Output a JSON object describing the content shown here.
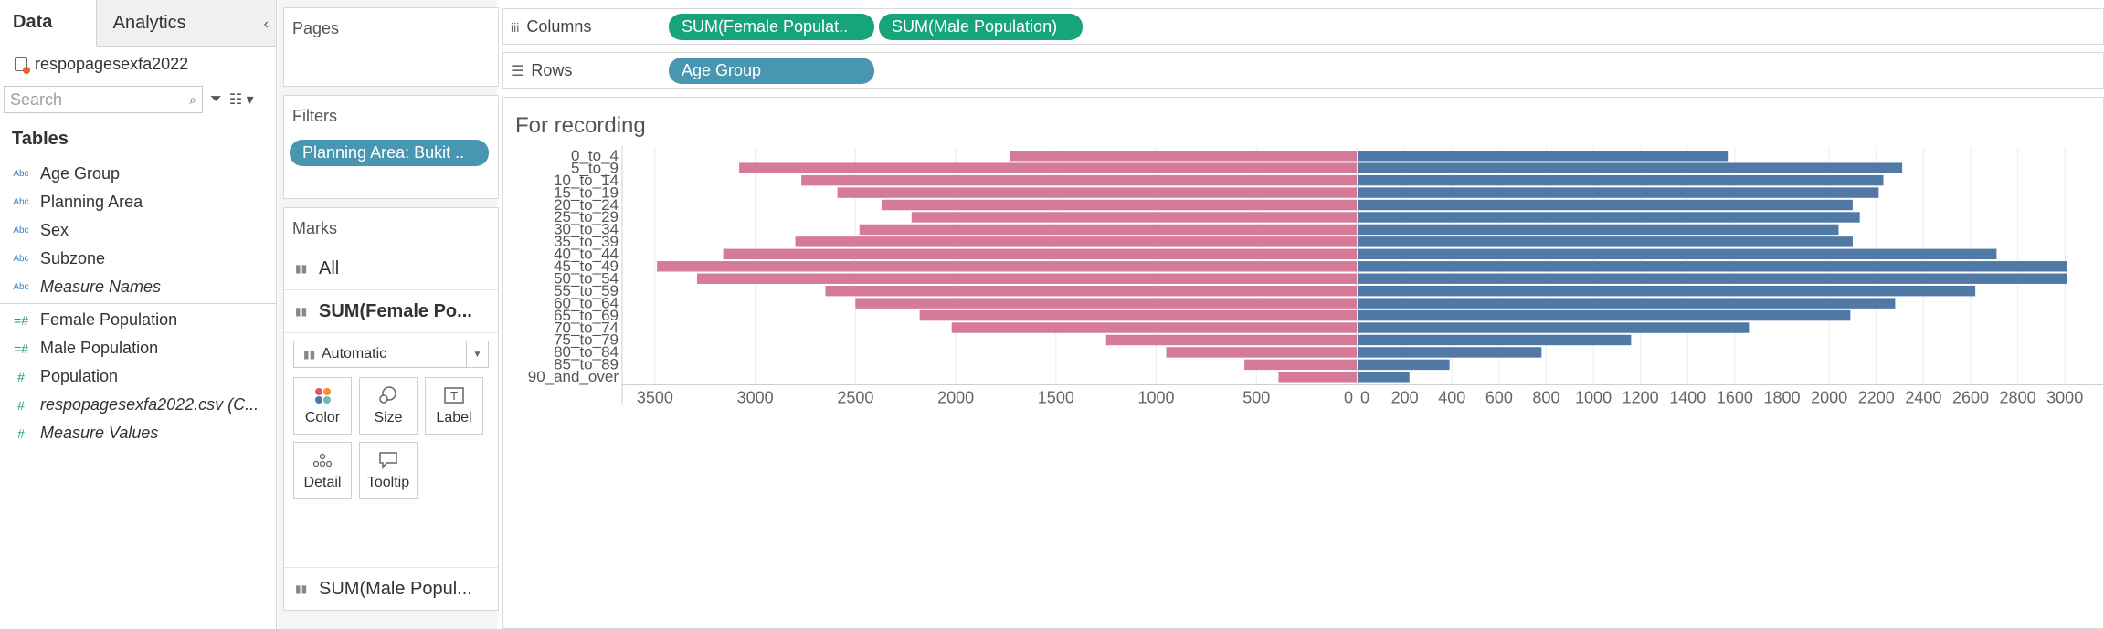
{
  "left_pane": {
    "tabs": {
      "data": "Data",
      "analytics": "Analytics"
    },
    "datasource": "respopagesexfa2022",
    "search_placeholder": "Search",
    "tables_heading": "Tables",
    "dimensions": [
      "Age Group",
      "Planning Area",
      "Sex",
      "Subzone",
      "Measure Names"
    ],
    "dimension_badge": "Abc",
    "measures": [
      "Female Population",
      "Male Population",
      "Population",
      "respopagesexfa2022.csv (C...",
      "Measure Values"
    ]
  },
  "cards": {
    "pages_title": "Pages",
    "filters_title": "Filters",
    "filter_pill": "Planning Area: Bukit ..",
    "marks_title": "Marks",
    "marks_all": "All",
    "marks_female": "SUM(Female Po...",
    "mark_type": "Automatic",
    "buttons": {
      "color": "Color",
      "size": "Size",
      "label": "Label",
      "detail": "Detail",
      "tooltip": "Tooltip"
    },
    "marks_male": "SUM(Male Popul..."
  },
  "shelves": {
    "columns_label": "Columns",
    "columns_pills": [
      "SUM(Female Populat..",
      "SUM(Male Population)"
    ],
    "rows_label": "Rows",
    "rows_pill": "Age Group"
  },
  "colors": {
    "female": "#d67a9a",
    "male": "#5079a6",
    "pill_blue": "#4996b2",
    "pill_green": "#18a47a"
  },
  "chart_data": {
    "type": "bar",
    "title": "For recording",
    "categories": [
      "0_to_4",
      "5_to_9",
      "10_to_14",
      "15_to_19",
      "20_to_24",
      "25_to_29",
      "30_to_34",
      "35_to_39",
      "40_to_44",
      "45_to_49",
      "50_to_54",
      "55_to_59",
      "60_to_64",
      "65_to_69",
      "70_to_74",
      "75_to_79",
      "80_to_84",
      "85_to_89",
      "90_and_over"
    ],
    "series": [
      {
        "values": [
          1730,
          3080,
          2770,
          2590,
          2370,
          2220,
          2480,
          2800,
          3160,
          3490,
          3290,
          2650,
          2500,
          2180,
          2020,
          1250,
          950,
          560,
          390
        ]
      },
      {
        "values": [
          1570,
          2310,
          2230,
          2210,
          2100,
          2130,
          2040,
          2100,
          2710,
          3010,
          3010,
          2620,
          2280,
          2090,
          1660,
          1160,
          780,
          390,
          220
        ]
      }
    ],
    "left_ticks": [
      "3500",
      "3000",
      "2500",
      "2000",
      "1500",
      "1000",
      "500",
      "0"
    ],
    "right_ticks": [
      "0",
      "200",
      "400",
      "600",
      "800",
      "1000",
      "1200",
      "1400",
      "1600",
      "1800",
      "2000",
      "2200",
      "2400",
      "2600",
      "2800",
      "3000"
    ],
    "left_max": 3650,
    "right_max": 3100,
    "grid": true
  }
}
